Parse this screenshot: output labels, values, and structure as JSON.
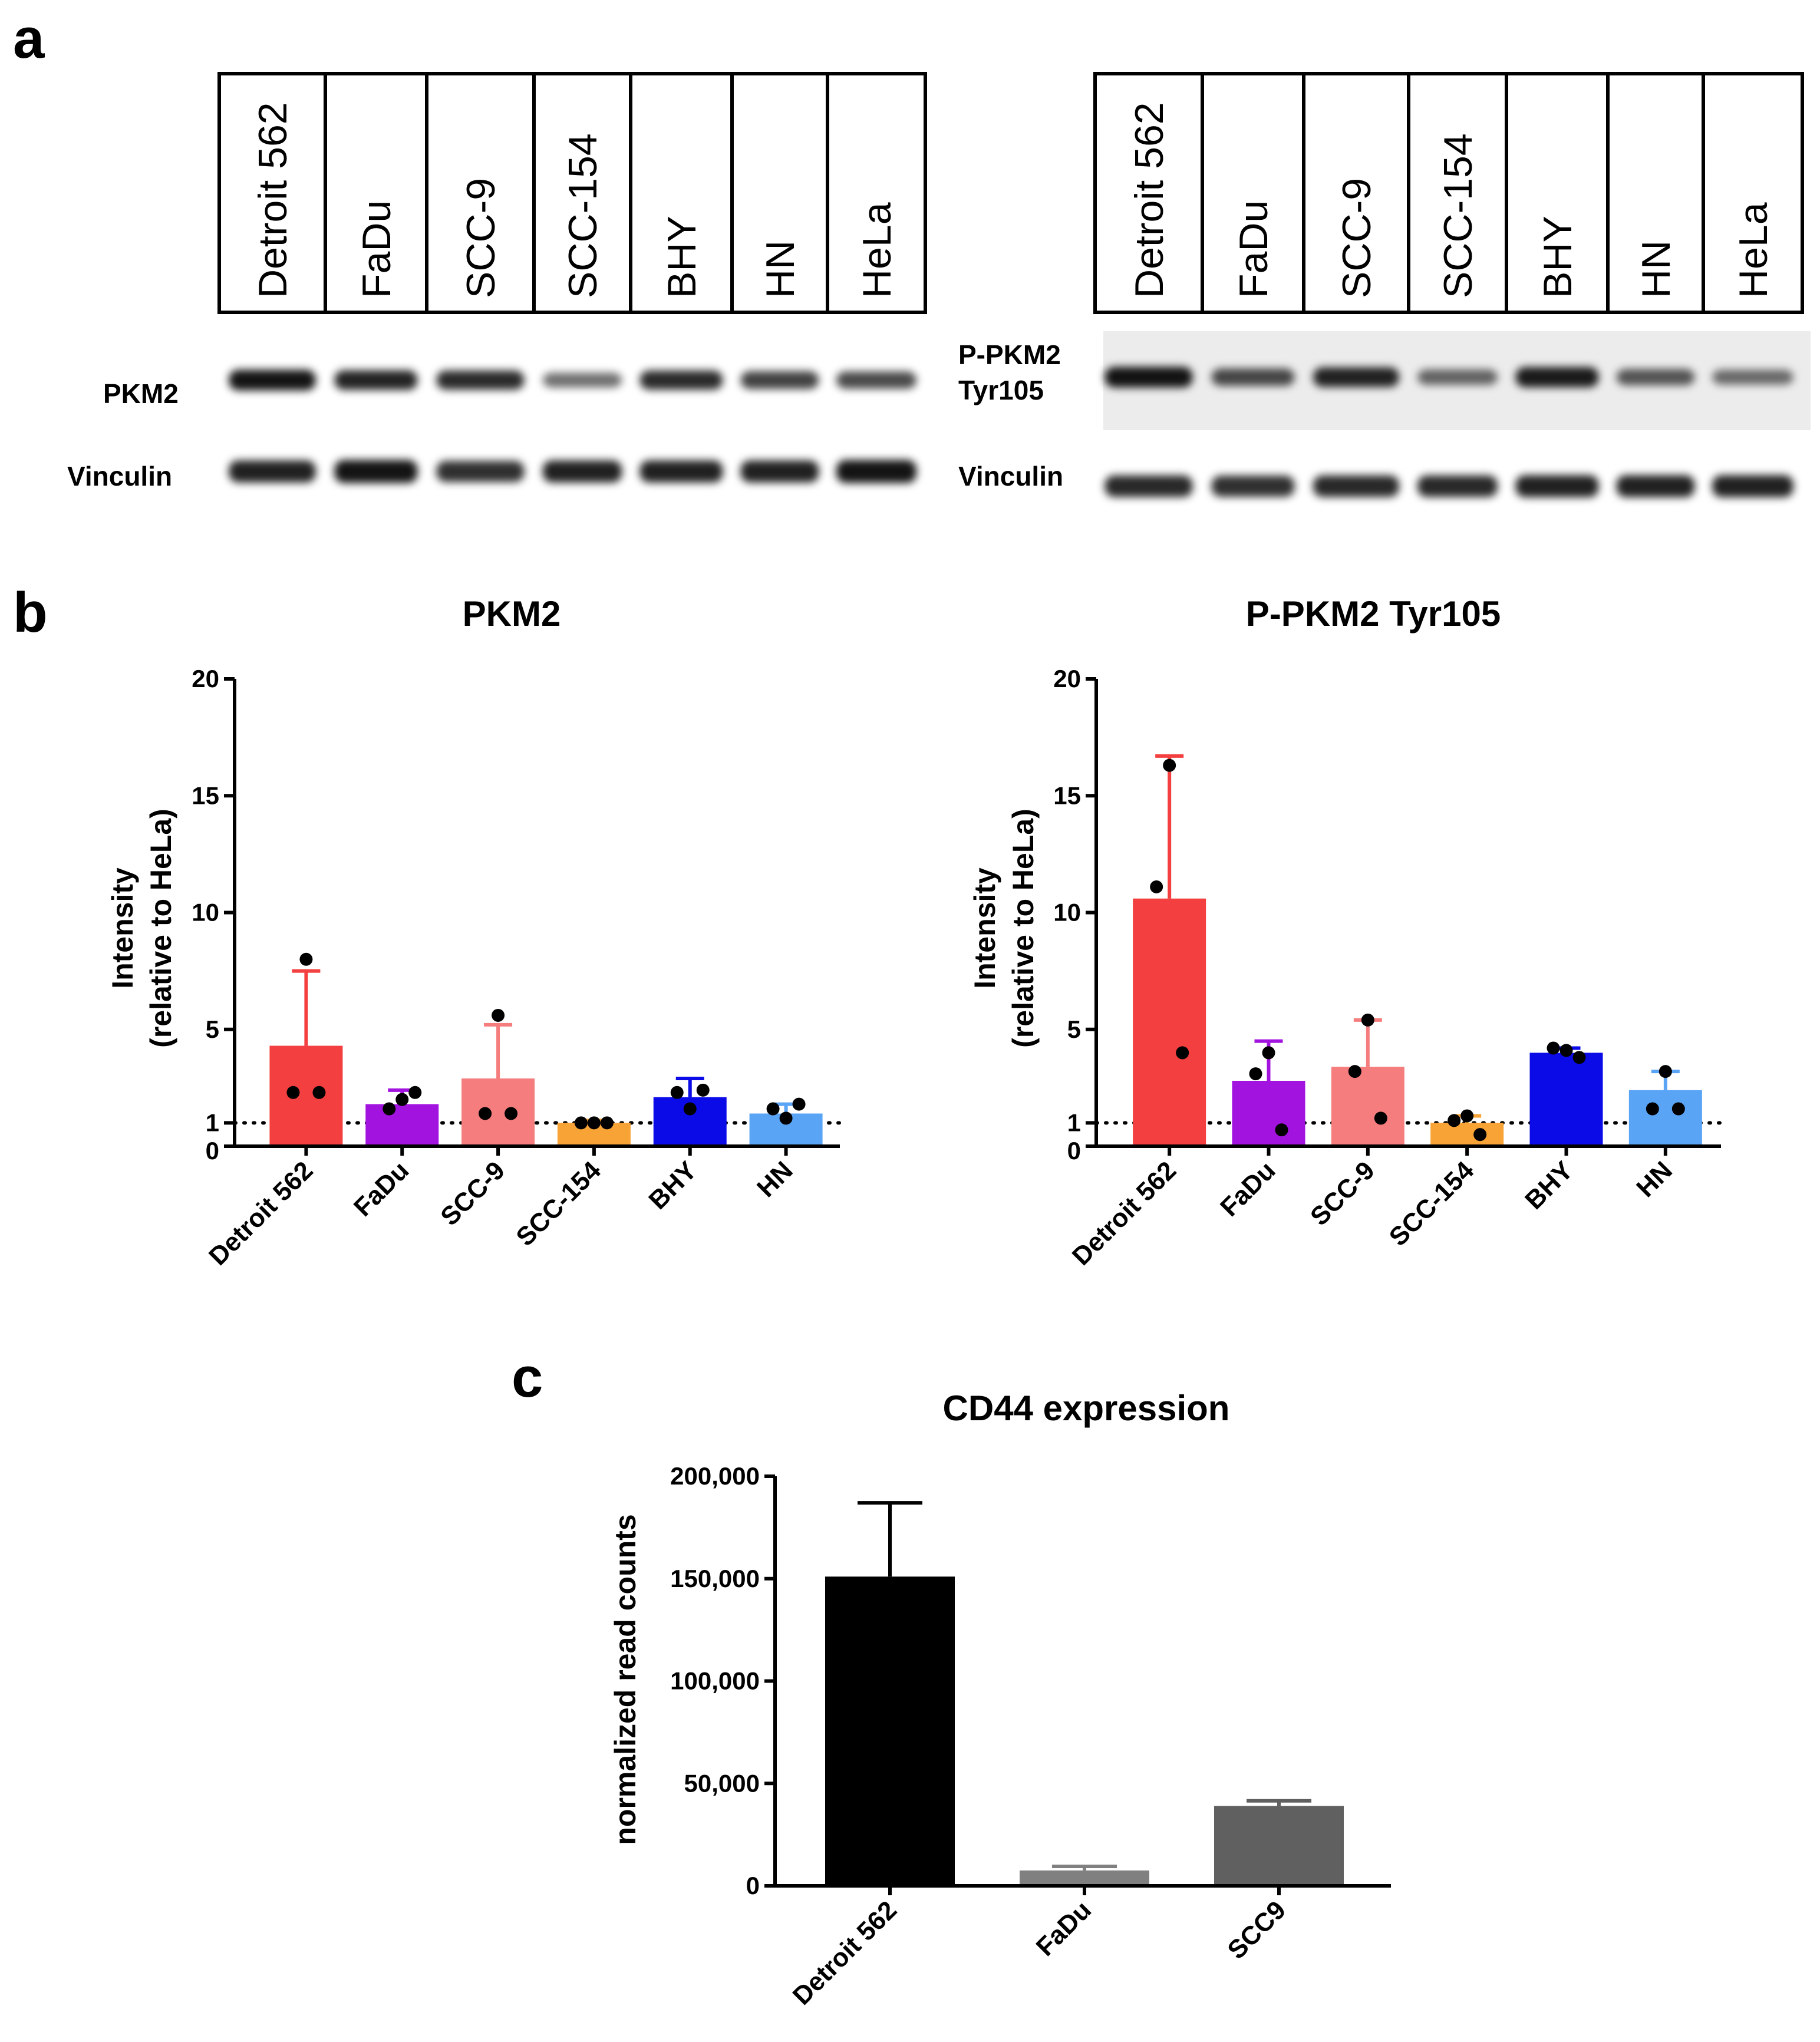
{
  "panel_letters": {
    "a": "a",
    "b": "b",
    "c": "c"
  },
  "blot_left": {
    "lanes": [
      "Detroit 562",
      "FaDu",
      "SCC-9",
      "SCC-154",
      "BHY",
      "HN",
      "HeLa"
    ],
    "row_labels": {
      "target": "PKM2",
      "control": "Vinculin"
    },
    "target_intensity": [
      0.95,
      0.85,
      0.8,
      0.35,
      0.8,
      0.65,
      0.6
    ],
    "control_intensity": [
      0.85,
      0.95,
      0.75,
      0.85,
      0.85,
      0.85,
      0.95
    ]
  },
  "blot_right": {
    "lanes": [
      "Detroit 562",
      "FaDu",
      "SCC-9",
      "SCC-154",
      "BHY",
      "HN",
      "HeLa"
    ],
    "row_labels": {
      "target_line1": "P-PKM2",
      "target_line2": "Tyr105",
      "control": "Vinculin"
    },
    "target_intensity": [
      0.95,
      0.6,
      0.85,
      0.4,
      0.9,
      0.5,
      0.35
    ],
    "control_intensity": [
      0.8,
      0.75,
      0.8,
      0.8,
      0.85,
      0.85,
      0.85
    ]
  },
  "chart_data": [
    {
      "type": "bar",
      "title": "PKM2",
      "ylabel_line1": "Intensity",
      "ylabel_line2": "(relative to HeLa)",
      "ylim": [
        0,
        20
      ],
      "yticks": [
        "0",
        "1",
        "5",
        "10",
        "15",
        "20"
      ],
      "reference_line": 1,
      "categories": [
        "Detroit 562",
        "FaDu",
        "SCC-9",
        "SCC-154",
        "BHY",
        "HN"
      ],
      "values": [
        4.3,
        1.8,
        2.9,
        1.0,
        2.1,
        1.4
      ],
      "error_upper": [
        7.5,
        2.4,
        5.2,
        1.1,
        2.9,
        1.8
      ],
      "points": [
        [
          8.0,
          2.3,
          2.3
        ],
        [
          2.0,
          1.6,
          2.3
        ],
        [
          5.6,
          1.4,
          1.4
        ],
        [
          1.0,
          1.0,
          1.0
        ],
        [
          1.6,
          2.3,
          2.4
        ],
        [
          1.2,
          1.6,
          1.8
        ]
      ],
      "colors": [
        "#f33f3f",
        "#a313e0",
        "#f57d7d",
        "#f7a336",
        "#0b0be8",
        "#5aa4f5"
      ]
    },
    {
      "type": "bar",
      "title": "P-PKM2 Tyr105",
      "ylabel_line1": "Intensity",
      "ylabel_line2": "(relative to HeLa)",
      "ylim": [
        0,
        20
      ],
      "yticks": [
        "0",
        "1",
        "5",
        "10",
        "15",
        "20"
      ],
      "reference_line": 1,
      "categories": [
        "Detroit 562",
        "FaDu",
        "SCC-9",
        "SCC-154",
        "BHY",
        "HN"
      ],
      "values": [
        10.6,
        2.8,
        3.4,
        1.0,
        4.0,
        2.4
      ],
      "error_upper": [
        16.7,
        4.5,
        5.4,
        1.3,
        4.2,
        3.2
      ],
      "points": [
        [
          16.3,
          11.1,
          4.0
        ],
        [
          4.0,
          3.1,
          0.7
        ],
        [
          5.4,
          3.2,
          1.2
        ],
        [
          1.3,
          1.1,
          0.5
        ],
        [
          4.1,
          4.2,
          3.8
        ],
        [
          3.2,
          1.6,
          1.6
        ]
      ],
      "colors": [
        "#f33f3f",
        "#a313e0",
        "#f57d7d",
        "#f7a336",
        "#0b0be8",
        "#5aa4f5"
      ]
    },
    {
      "type": "bar",
      "title": "CD44 expression",
      "ylabel": "normalized read counts",
      "ylim": [
        0,
        200000
      ],
      "yticks": [
        "0",
        "50,000",
        "100,000",
        "150,000",
        "200,000"
      ],
      "categories": [
        "Detroit 562",
        "FaDu",
        "SCC9"
      ],
      "values": [
        151000,
        7500,
        39000
      ],
      "error_upper": [
        187000,
        9500,
        41500
      ],
      "colors": [
        "#000000",
        "#808080",
        "#606060"
      ]
    }
  ]
}
